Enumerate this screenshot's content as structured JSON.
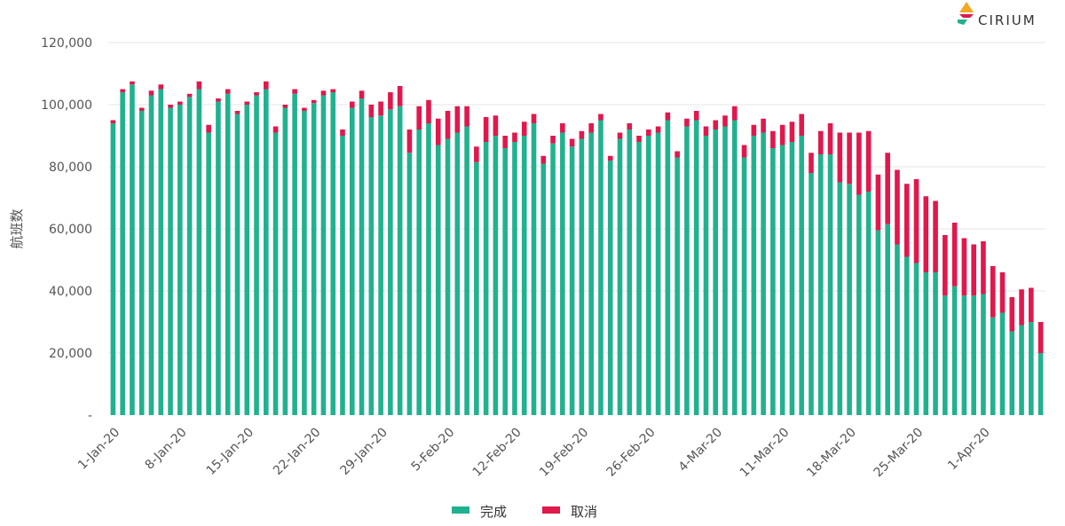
{
  "brand": {
    "name": "CIRIUM"
  },
  "colors": {
    "completed": "#22b18f",
    "cancelled": "#e0184c",
    "grid": "#e6e6e6",
    "axis_text": "#555555"
  },
  "chart_data": {
    "type": "bar",
    "stacked": true,
    "ylabel": "航班数",
    "xlabel": "",
    "ylim": [
      0,
      120000
    ],
    "yticks": [
      0,
      20000,
      40000,
      60000,
      80000,
      100000,
      120000
    ],
    "ytick_labels": [
      "-",
      "20,000",
      "40,000",
      "60,000",
      "80,000",
      "100,000",
      "120,000"
    ],
    "grid": true,
    "legend_position": "bottom",
    "x_tick_labels": [
      "1-Jan-20",
      "8-Jan-20",
      "15-Jan-20",
      "22-Jan-20",
      "29-Jan-20",
      "5-Feb-20",
      "12-Feb-20",
      "19-Feb-20",
      "26-Feb-20",
      "4-Mar-20",
      "11-Mar-20",
      "18-Mar-20",
      "25-Mar-20",
      "1-Apr-20"
    ],
    "x_tick_every": 7,
    "categories": [
      "1-Jan",
      "2-Jan",
      "3-Jan",
      "4-Jan",
      "5-Jan",
      "6-Jan",
      "7-Jan",
      "8-Jan",
      "9-Jan",
      "10-Jan",
      "11-Jan",
      "12-Jan",
      "13-Jan",
      "14-Jan",
      "15-Jan",
      "16-Jan",
      "17-Jan",
      "18-Jan",
      "19-Jan",
      "20-Jan",
      "21-Jan",
      "22-Jan",
      "23-Jan",
      "24-Jan",
      "25-Jan",
      "26-Jan",
      "27-Jan",
      "28-Jan",
      "29-Jan",
      "30-Jan",
      "31-Jan",
      "1-Feb",
      "2-Feb",
      "3-Feb",
      "4-Feb",
      "5-Feb",
      "6-Feb",
      "7-Feb",
      "8-Feb",
      "9-Feb",
      "10-Feb",
      "11-Feb",
      "12-Feb",
      "13-Feb",
      "14-Feb",
      "15-Feb",
      "16-Feb",
      "17-Feb",
      "18-Feb",
      "19-Feb",
      "20-Feb",
      "21-Feb",
      "22-Feb",
      "23-Feb",
      "24-Feb",
      "25-Feb",
      "26-Feb",
      "27-Feb",
      "28-Feb",
      "29-Feb",
      "1-Mar",
      "2-Mar",
      "3-Mar",
      "4-Mar",
      "5-Mar",
      "6-Mar",
      "7-Mar",
      "8-Mar",
      "9-Mar",
      "10-Mar",
      "11-Mar",
      "12-Mar",
      "13-Mar",
      "14-Mar",
      "15-Mar",
      "16-Mar",
      "17-Mar",
      "18-Mar",
      "19-Mar",
      "20-Mar",
      "21-Mar",
      "22-Mar",
      "23-Mar",
      "24-Mar",
      "25-Mar",
      "26-Mar",
      "27-Mar",
      "28-Mar",
      "29-Mar",
      "30-Mar",
      "31-Mar",
      "1-Apr",
      "2-Apr",
      "3-Apr",
      "4-Apr",
      "5-Apr",
      "6-Apr",
      "7-Apr"
    ],
    "series": [
      {
        "name": "完成",
        "color": "#22b18f",
        "values": [
          94000,
          104000,
          106500,
          98000,
          103000,
          105000,
          99000,
          100000,
          102500,
          105000,
          91000,
          101000,
          103500,
          97000,
          100000,
          103000,
          105000,
          91000,
          99000,
          103500,
          98000,
          100500,
          103000,
          104000,
          90000,
          99000,
          102000,
          96000,
          96500,
          98500,
          99500,
          84500,
          92000,
          94000,
          87000,
          89000,
          91000,
          93000,
          81500,
          88000,
          90000,
          86000,
          88000,
          90000,
          94000,
          81000,
          87500,
          91000,
          86500,
          89000,
          91000,
          95000,
          82000,
          89000,
          92000,
          88000,
          90000,
          91000,
          95000,
          83000,
          93000,
          95000,
          90000,
          92000,
          93000,
          95000,
          83000,
          90000,
          91000,
          86000,
          87000,
          88000,
          90000,
          78000,
          84000,
          84000,
          75000,
          74500,
          71000,
          72000,
          59500,
          61500,
          55000,
          51000,
          49000,
          46000,
          46000,
          38500,
          41500,
          38500,
          38500,
          39000,
          31500,
          33000,
          27000,
          29000,
          30000,
          20000
        ]
      },
      {
        "name": "取消",
        "color": "#e0184c",
        "values": [
          1000,
          1000,
          1000,
          1000,
          1500,
          1500,
          1000,
          1000,
          1000,
          2500,
          2500,
          1000,
          1500,
          1000,
          1000,
          1000,
          2500,
          2000,
          1000,
          1500,
          1000,
          1000,
          1500,
          1000,
          2000,
          2000,
          2500,
          4000,
          4500,
          5500,
          6500,
          7500,
          7500,
          7500,
          8500,
          9000,
          8500,
          6500,
          5000,
          8000,
          6500,
          4000,
          3000,
          4500,
          3000,
          2500,
          2500,
          3000,
          2500,
          2500,
          3000,
          2000,
          1500,
          2000,
          2000,
          2000,
          2000,
          2000,
          2500,
          2000,
          2500,
          3000,
          3000,
          3000,
          3500,
          4500,
          4000,
          3500,
          4500,
          5500,
          6500,
          6500,
          7000,
          6500,
          7500,
          10000,
          16000,
          16500,
          20000,
          19500,
          18000,
          23000,
          24000,
          23500,
          27000,
          24500,
          23000,
          19500,
          20500,
          18500,
          16500,
          17000,
          16500,
          13000,
          11000,
          11500,
          11000,
          10000
        ]
      }
    ]
  },
  "legend": [
    {
      "label": "完成"
    },
    {
      "label": "取消"
    }
  ]
}
